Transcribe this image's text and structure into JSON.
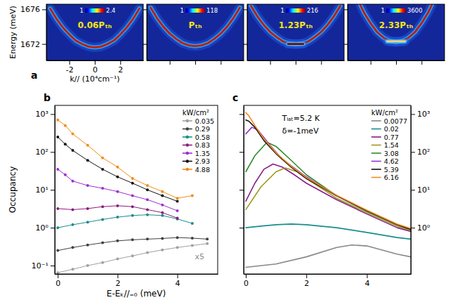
{
  "chart_data": [
    {
      "type": "line",
      "panel": "a",
      "title": "0.06Pₜₕ",
      "xlabel": "k// (10⁴cm⁻¹)",
      "ylabel": "Energy (meV)",
      "x": [
        -3.5,
        -3,
        -2.5,
        -2,
        -1.5,
        -1,
        -0.5,
        0,
        0.5,
        1,
        1.5,
        2,
        2.5,
        3,
        3.5
      ],
      "series": [
        {
          "color": "#c8140a",
          "values": [
            1676.1,
            1674.9,
            1673.9,
            1673.1,
            1672.4,
            1672.0,
            1671.7,
            1671.6,
            1671.7,
            1672.0,
            1672.4,
            1673.1,
            1673.9,
            1674.9,
            1676.1
          ]
        }
      ],
      "xlim": [
        -3.8,
        3.8
      ],
      "ylim": [
        1670.1,
        1676.6
      ],
      "xticks": [
        -2,
        0,
        2
      ],
      "yticks": [
        1672,
        1676
      ],
      "colorbar": {
        "range": [
          1,
          2.4
        ],
        "ticks": [
          1,
          2.4
        ]
      }
    },
    {
      "type": "line",
      "title": "Pₜₕ",
      "tick_labels": false,
      "x": [
        -3.5,
        -3,
        -2.5,
        -2,
        -1.5,
        -1,
        -0.5,
        0,
        0.5,
        1,
        1.5,
        2,
        2.5,
        3,
        3.5
      ],
      "series": [
        {
          "color": "#c8140a",
          "values": [
            1676.2,
            1675.0,
            1674.0,
            1673.2,
            1672.6,
            1672.1,
            1671.85,
            1671.75,
            1671.85,
            1672.1,
            1672.6,
            1673.2,
            1674.0,
            1675.0,
            1676.2
          ]
        }
      ],
      "xlim": [
        -3.8,
        3.8
      ],
      "ylim": [
        1670.1,
        1676.6
      ],
      "xticks": [
        -2,
        0,
        2
      ],
      "yticks": [
        1672,
        1676
      ],
      "colorbar": {
        "range": [
          1,
          118
        ],
        "ticks": [
          1,
          118
        ]
      }
    },
    {
      "type": "line",
      "title": "1.23Pₜₕ",
      "tick_labels": false,
      "x": [
        -3.5,
        -3,
        -2.5,
        -2,
        -1.5,
        -1,
        -0.5,
        0,
        0.5,
        1,
        1.5,
        2,
        2.5,
        3,
        3.5
      ],
      "series": [
        {
          "color": "#c8140a",
          "values": [
            1676.4,
            1675.2,
            1674.2,
            1673.4,
            1672.8,
            1672.3,
            1672.05,
            1671.95,
            1672.05,
            1672.3,
            1672.8,
            1673.4,
            1674.2,
            1675.2,
            1676.4
          ]
        },
        {
          "color": "#8a0000",
          "x": [
            -0.6,
            -0.3,
            0,
            0.3,
            0.6
          ],
          "values": [
            1672.0,
            1672.0,
            1672.0,
            1672.0,
            1672.0
          ]
        }
      ],
      "xlim": [
        -3.8,
        3.8
      ],
      "ylim": [
        1670.1,
        1676.6
      ],
      "xticks": [
        -2,
        0,
        2
      ],
      "yticks": [
        1672,
        1676
      ],
      "colorbar": {
        "range": [
          1,
          216
        ],
        "ticks": [
          1,
          216
        ]
      }
    },
    {
      "type": "line",
      "title": "2.33Pₜₕ",
      "tick_labels": false,
      "series": [
        {
          "color": "#c8140a",
          "x": [
            -2.8,
            -2.5,
            -2,
            -1.5,
            -1,
            -0.5,
            0,
            0.5,
            1,
            1.5,
            2,
            2.5,
            2.8
          ],
          "values": [
            1676.5,
            1675.6,
            1674.4,
            1673.4,
            1672.75,
            1672.35,
            1672.2,
            1672.35,
            1672.75,
            1673.4,
            1674.4,
            1675.6,
            1676.5
          ]
        },
        {
          "color": "#ffd27a",
          "x": [
            -0.7,
            -0.35,
            0,
            0.35,
            0.7
          ],
          "values": [
            1672.3,
            1672.3,
            1672.3,
            1672.3,
            1672.3
          ]
        }
      ],
      "xlim": [
        -3.8,
        3.8
      ],
      "ylim": [
        1670.1,
        1676.6
      ],
      "xticks": [
        -2,
        0,
        2
      ],
      "yticks": [
        1672,
        1676
      ],
      "colorbar": {
        "range": [
          1,
          3600
        ],
        "ticks": [
          1,
          3600
        ]
      }
    },
    {
      "type": "line",
      "panel": "b",
      "xlabel": "E-Eₖ//₌₀ (meV)",
      "ylabel": "Occupancy",
      "log": "y",
      "marker": "circle",
      "line_style": "solid",
      "legend": "upper right",
      "legend_title": "kW/cm²",
      "annotations": [
        "x5"
      ],
      "xlim": [
        -0.1,
        5.35
      ],
      "ylim": [
        0.06,
        1700
      ],
      "xticks": [
        0,
        2,
        4
      ],
      "yticks": [
        {
          "value": 0.1,
          "label": "10⁻¹"
        },
        {
          "value": 1,
          "label": "10⁰"
        },
        {
          "value": 10,
          "label": "10¹"
        },
        {
          "value": 100,
          "label": "10²"
        },
        {
          "value": 1000,
          "label": "10³"
        }
      ],
      "series": [
        {
          "name": "0.035",
          "color": "#a0a0a0",
          "x": [
            0,
            0.5,
            1,
            1.5,
            2,
            2.5,
            3,
            3.5,
            4,
            4.5,
            5
          ],
          "values": [
            0.065,
            0.08,
            0.1,
            0.12,
            0.15,
            0.18,
            0.22,
            0.26,
            0.3,
            0.34,
            0.38
          ]
        },
        {
          "name": "0.29",
          "color": "#404040",
          "x": [
            0,
            0.5,
            1,
            1.5,
            2,
            2.5,
            3,
            3.5,
            4,
            4.5,
            5
          ],
          "values": [
            0.25,
            0.3,
            0.35,
            0.4,
            0.45,
            0.48,
            0.5,
            0.52,
            0.55,
            0.53,
            0.5
          ]
        },
        {
          "name": "0.58",
          "color": "#1a8c8c",
          "x": [
            0,
            0.5,
            1,
            1.5,
            2,
            2.5,
            3,
            3.5,
            4,
            4.5
          ],
          "values": [
            1.0,
            1.2,
            1.4,
            1.65,
            1.9,
            2.1,
            2.2,
            2.1,
            1.7,
            1.3
          ]
        },
        {
          "name": "0.83",
          "color": "#8b1c7a",
          "x": [
            0,
            0.5,
            1,
            1.5,
            2,
            2.5,
            3,
            3.5,
            4
          ],
          "values": [
            3.2,
            3.0,
            3.2,
            3.6,
            3.8,
            3.6,
            3.0,
            2.5,
            1.8
          ]
        },
        {
          "name": "1.35",
          "color": "#9b30d0",
          "x": [
            0,
            0.25,
            0.5,
            1,
            1.5,
            2,
            2.5,
            3,
            3.5,
            4
          ],
          "values": [
            35,
            25,
            17,
            13,
            11,
            9,
            7,
            5.5,
            4,
            2.8
          ]
        },
        {
          "name": "2.93",
          "color": "#111111",
          "x": [
            0,
            0.25,
            0.5,
            1,
            1.5,
            2,
            2.5,
            3,
            3.5,
            4
          ],
          "values": [
            250,
            160,
            110,
            60,
            35,
            22,
            15,
            10,
            7,
            5
          ]
        },
        {
          "name": "4.88",
          "color": "#f08c1a",
          "x": [
            0,
            0.25,
            0.5,
            1,
            1.5,
            2,
            2.5,
            3,
            3.5,
            4,
            4.5
          ],
          "values": [
            700,
            500,
            300,
            150,
            70,
            40,
            20,
            13,
            9,
            6,
            7
          ]
        }
      ]
    },
    {
      "type": "line",
      "panel": "c",
      "log": "y",
      "legend": "upper right",
      "legend_title": "kW/cm²",
      "annotations": [
        "Tₗₐₜ=5.2 K",
        "δ=-1meV"
      ],
      "xlim": [
        -0.07,
        5.45
      ],
      "ylim": [
        0.06,
        1700
      ],
      "xticks": [
        0,
        2,
        4
      ],
      "yticks": [
        {
          "value": 1,
          "label": "10⁰"
        },
        {
          "value": 10,
          "label": "10¹"
        },
        {
          "value": 100,
          "label": "10²"
        },
        {
          "value": 1000,
          "label": "10³"
        }
      ],
      "series": [
        {
          "name": "0.0077",
          "color": "#888888",
          "x": [
            0,
            1,
            2,
            3,
            3.5,
            4,
            5,
            5.45
          ],
          "values": [
            0.09,
            0.11,
            0.17,
            0.3,
            0.35,
            0.33,
            0.2,
            0.17
          ]
        },
        {
          "name": "0.02",
          "color": "#1a8c8c",
          "x": [
            0,
            0.5,
            1,
            1.5,
            2,
            3,
            4,
            5,
            5.45
          ],
          "values": [
            1.0,
            1.1,
            1.2,
            1.25,
            1.2,
            1.0,
            0.75,
            0.55,
            0.5
          ]
        },
        {
          "name": "0.77",
          "color": "#8b1a8b",
          "x": [
            0,
            0.3,
            0.6,
            0.9,
            1.2,
            1.6,
            2,
            3,
            4,
            5,
            5.45
          ],
          "values": [
            5,
            15,
            35,
            48,
            40,
            25,
            15,
            5.5,
            2.3,
            1.0,
            0.8
          ]
        },
        {
          "name": "1.54",
          "color": "#9a9a20",
          "x": [
            0,
            0.5,
            1,
            1.3,
            1.7,
            2,
            3,
            4,
            5,
            5.45
          ],
          "values": [
            3,
            12,
            30,
            38,
            30,
            20,
            6,
            2.5,
            1.1,
            0.85
          ]
        },
        {
          "name": "3.08",
          "color": "#2e8b2e",
          "x": [
            0,
            0.3,
            0.7,
            1,
            1.5,
            2,
            3,
            4,
            5,
            5.45
          ],
          "values": [
            30,
            80,
            180,
            140,
            60,
            25,
            7,
            2.7,
            1.2,
            0.9
          ]
        },
        {
          "name": "4.62",
          "color": "#9b30d0",
          "x": [
            0,
            0.2,
            0.4,
            0.8,
            1.2,
            2,
            3,
            4,
            5,
            5.45
          ],
          "values": [
            300,
            450,
            380,
            150,
            65,
            22,
            7,
            2.8,
            1.2,
            0.9
          ]
        },
        {
          "name": "5.39",
          "color": "#111111",
          "x": [
            0,
            0.1,
            0.3,
            0.6,
            1,
            1.5,
            2,
            3,
            4,
            5,
            5.45
          ],
          "values": [
            700,
            650,
            450,
            200,
            90,
            40,
            20,
            7,
            2.8,
            1.2,
            0.9
          ]
        },
        {
          "name": "6.16",
          "color": "#f08c1a",
          "x": [
            0,
            0.1,
            0.3,
            0.6,
            1,
            1.5,
            2,
            3,
            4,
            5,
            5.45
          ],
          "values": [
            1100,
            900,
            500,
            220,
            95,
            42,
            21,
            7.2,
            2.9,
            1.25,
            0.95
          ]
        }
      ]
    }
  ]
}
